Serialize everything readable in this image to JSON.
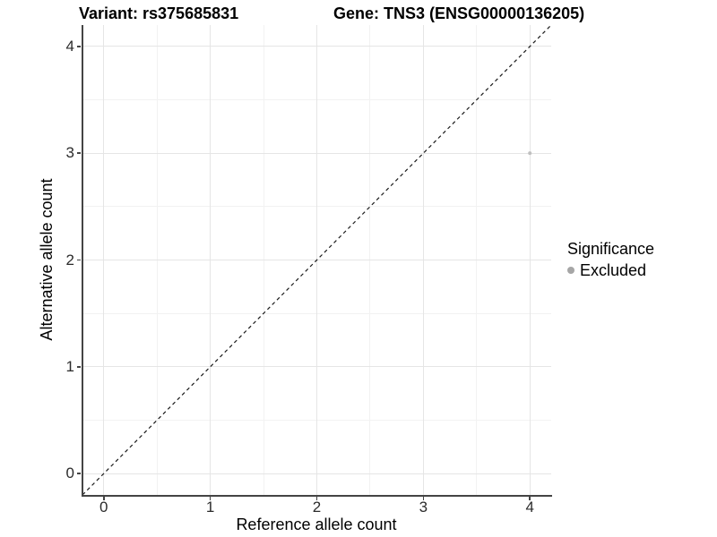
{
  "titles": {
    "variant": "Variant: rs375685831",
    "gene": "Gene: TNS3 (ENSG00000136205)"
  },
  "chart_data": {
    "type": "scatter",
    "title_left": "Variant: rs375685831",
    "title_right": "Gene: TNS3 (ENSG00000136205)",
    "xlabel": "Reference allele count",
    "ylabel": "Alternative allele count",
    "xlim": [
      -0.2,
      4.2
    ],
    "ylim": [
      -0.2,
      4.2
    ],
    "xticks": [
      0,
      1,
      2,
      3,
      4
    ],
    "yticks": [
      0,
      1,
      2,
      3,
      4
    ],
    "minor_xticks": [
      0.5,
      1.5,
      2.5,
      3.5
    ],
    "minor_yticks": [
      0.5,
      1.5,
      2.5,
      3.5
    ],
    "grid": true,
    "identity_line": {
      "style": "dashed",
      "from_xy": [
        -0.2,
        -0.2
      ],
      "to_xy": [
        4.2,
        4.2
      ],
      "color": "#1a1a1a"
    },
    "series": [
      {
        "name": "Excluded",
        "color": "#c0c0c0",
        "points": [
          {
            "x": 4,
            "y": 3
          }
        ]
      }
    ],
    "legend": {
      "title": "Significance",
      "position": "right",
      "entries": [
        {
          "label": "Excluded",
          "color": "#a6a6a6"
        }
      ]
    },
    "colors": {
      "grid_major": "#e5e5e5",
      "grid_minor": "#f2f2f2",
      "axis_line": "#444444",
      "background": "#ffffff"
    }
  }
}
